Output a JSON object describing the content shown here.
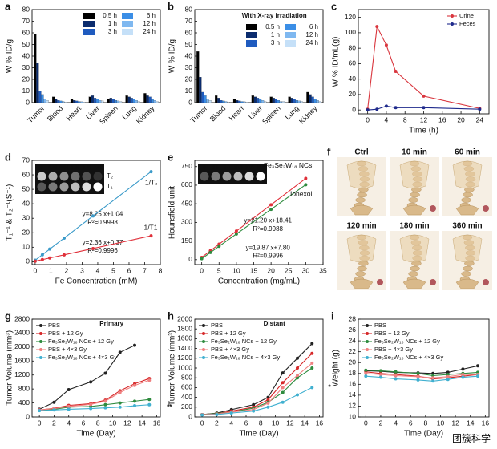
{
  "chart_data": [
    {
      "panel": "a",
      "type": "bar",
      "ylabel": "W % ID/g",
      "categories": [
        "Tumor",
        "Blood",
        "Heart",
        "Liver",
        "Spleen",
        "Lung",
        "Kidney"
      ],
      "series": [
        {
          "name": "0.5 h",
          "color": "#000000",
          "values": [
            59,
            5,
            3,
            5,
            3,
            6,
            8
          ]
        },
        {
          "name": "1 h",
          "color": "#0b2c6e",
          "values": [
            34,
            3,
            2,
            6,
            4,
            5,
            6
          ]
        },
        {
          "name": "3 h",
          "color": "#1f5bbf",
          "values": [
            10,
            2,
            1.5,
            4,
            3,
            4,
            5
          ]
        },
        {
          "name": "6 h",
          "color": "#3b8ee6",
          "values": [
            7,
            1.5,
            1,
            3,
            2,
            3,
            3
          ]
        },
        {
          "name": "12 h",
          "color": "#7fb8f0",
          "values": [
            3,
            1,
            0.8,
            2,
            1.5,
            2,
            2
          ]
        },
        {
          "name": "24 h",
          "color": "#c5e0f8",
          "values": [
            2,
            0.5,
            0.5,
            1.5,
            1,
            1,
            1
          ]
        }
      ],
      "ylim": [
        0,
        80
      ],
      "yticks": [
        0,
        10,
        20,
        30,
        40,
        50,
        60,
        70,
        80
      ],
      "legend": "upper right"
    },
    {
      "panel": "b",
      "type": "bar",
      "ylabel": "W % ID/g",
      "annotations": [
        {
          "text": "With X-ray irradiation",
          "color": "#000000"
        }
      ],
      "categories": [
        "Tumor",
        "Blood",
        "Heart",
        "Liver",
        "Spleen",
        "Lung",
        "Kidney"
      ],
      "series": [
        {
          "name": "0.5 h",
          "color": "#000000",
          "values": [
            44,
            6,
            3,
            6,
            5,
            5,
            9
          ]
        },
        {
          "name": "1 h",
          "color": "#0b2c6e",
          "values": [
            22,
            4,
            2,
            5,
            4,
            4,
            7
          ]
        },
        {
          "name": "3 h",
          "color": "#1f5bbf",
          "values": [
            9,
            2,
            1.5,
            4,
            3,
            3,
            5
          ]
        },
        {
          "name": "6 h",
          "color": "#3b8ee6",
          "values": [
            6,
            1.5,
            1,
            3,
            2,
            2,
            3
          ]
        },
        {
          "name": "12 h",
          "color": "#7fb8f0",
          "values": [
            3,
            1,
            0.8,
            2,
            1,
            1.5,
            2
          ]
        },
        {
          "name": "24 h",
          "color": "#c5e0f8",
          "values": [
            2,
            0.5,
            0.5,
            1,
            1,
            1,
            1
          ]
        }
      ],
      "ylim": [
        0,
        80
      ],
      "yticks": [
        0,
        10,
        20,
        30,
        40,
        50,
        60,
        70,
        80
      ],
      "legend": "upper right"
    },
    {
      "panel": "c",
      "type": "line",
      "xlabel": "Time (h)",
      "ylabel": "W % ID/mL(g)",
      "x": [
        0,
        2,
        4,
        6,
        12,
        24
      ],
      "series": [
        {
          "name": "Urine",
          "color": "#d9363e",
          "values": [
            1,
            108,
            84,
            50,
            18,
            2
          ]
        },
        {
          "name": "Feces",
          "color": "#1f2a8c",
          "values": [
            0,
            1,
            5,
            3,
            3,
            1
          ]
        }
      ],
      "xlim": [
        -2,
        26
      ],
      "xticks": [
        0,
        4,
        8,
        12,
        16,
        20,
        24
      ],
      "ylim": [
        -5,
        130
      ],
      "yticks": [
        0,
        20,
        40,
        60,
        80,
        100,
        120
      ],
      "legend": "upper right"
    },
    {
      "panel": "d",
      "type": "line",
      "xlabel": "Fe Concentration (mM)",
      "ylabel": "T₁⁻¹ & T₂⁻¹(S⁻¹)",
      "x": [
        0,
        0.46,
        0.93,
        1.85,
        3.7,
        7.41
      ],
      "series": [
        {
          "name": "1/T₂",
          "color": "#3a9ac9",
          "values": [
            1.04,
            4.8,
            8.7,
            16.3,
            31.6,
            62.2
          ]
        },
        {
          "name": "1/T1",
          "color": "#e0303a",
          "values": [
            0.37,
            1.46,
            2.56,
            4.74,
            9.1,
            17.9
          ]
        }
      ],
      "annotations": [
        {
          "text": "y=8.25 x+1.04",
          "color": "#3a9ac9"
        },
        {
          "text": "R²=0.9998",
          "color": "#3a9ac9"
        },
        {
          "text": "y=2.36 x+0.37",
          "color": "#e0303a"
        },
        {
          "text": "R²=0.9996",
          "color": "#e0303a"
        }
      ],
      "inset_labels": [
        "0",
        "0.46",
        "0.93",
        "1.85",
        "3.70",
        "7.41"
      ],
      "inset_rows": [
        {
          "text": "T₂",
          "color": "#3a9ac9"
        },
        {
          "text": "T₁",
          "color": "#e0303a"
        }
      ],
      "xlim": [
        -0.2,
        8
      ],
      "xticks": [
        0,
        1,
        2,
        3,
        4,
        5,
        6,
        7,
        8
      ],
      "ylim": [
        -2,
        70
      ],
      "yticks": [
        0,
        10,
        20,
        30,
        40,
        50,
        60,
        70
      ],
      "legend": "inline"
    },
    {
      "panel": "e",
      "type": "line",
      "xlabel": "Concentration (mg/mL)",
      "ylabel": "Hounsfield unit",
      "x": [
        0,
        2.5,
        5,
        10,
        20,
        30
      ],
      "series": [
        {
          "name": "Fe₃Se₂W₁₈ NCs",
          "color": "#e0303a",
          "values": [
            18.41,
            71.4,
            124.4,
            230.4,
            442.4,
            654.4
          ]
        },
        {
          "name": "Iohexol",
          "color": "#2e8b3e",
          "values": [
            7.8,
            57.5,
            107.2,
            206.5,
            405.2,
            603.9
          ]
        }
      ],
      "annotations": [
        {
          "text": "y=21.20 x+18.41",
          "color": "#e0303a"
        },
        {
          "text": "R²=0.9988",
          "color": "#e0303a"
        },
        {
          "text": "y=19.87 x+7.80",
          "color": "#2e8b3e"
        },
        {
          "text": "R²=0.9996",
          "color": "#2e8b3e"
        }
      ],
      "inset_labels": [
        "0",
        "2.5",
        "5.0",
        "10.0",
        "20.0",
        "30.0"
      ],
      "xlim": [
        -2,
        35
      ],
      "xticks": [
        0,
        5,
        10,
        15,
        20,
        25,
        30,
        35
      ],
      "ylim": [
        -40,
        800
      ],
      "yticks": [
        0,
        150,
        300,
        450,
        600,
        750
      ],
      "legend": "inline"
    },
    {
      "panel": "g",
      "type": "line",
      "xlabel": "Time (Day)",
      "ylabel": "Tumor Volume (mm³)",
      "annotations": [
        {
          "text": "Primary",
          "color": "#000000"
        },
        {
          "text": "**",
          "color": "#2e8b3e"
        }
      ],
      "x": [
        0,
        2,
        4,
        7,
        9,
        11,
        13,
        15
      ],
      "series": [
        {
          "name": "PBS",
          "color": "#222222",
          "values": [
            220,
            420,
            780,
            1000,
            1250,
            1850,
            2050,
            null
          ]
        },
        {
          "name": "PBS + 12 Gy",
          "color": "#d62728",
          "values": [
            200,
            250,
            330,
            380,
            480,
            750,
            950,
            1100
          ]
        },
        {
          "name": "Fe₃Se₂W₁₈ NCs + 12 Gy",
          "color": "#2e8b3e",
          "values": [
            190,
            220,
            280,
            300,
            350,
            400,
            450,
            500
          ]
        },
        {
          "name": "PBS + 4×3 Gy",
          "color": "#f08080",
          "values": [
            200,
            240,
            300,
            360,
            450,
            700,
            900,
            1050
          ]
        },
        {
          "name": "Fe₃Se₂W₁₈ NCs + 4×3 Gy",
          "color": "#40b0d0",
          "values": [
            180,
            200,
            220,
            240,
            260,
            280,
            320,
            350
          ]
        }
      ],
      "xlim": [
        -1,
        16.5
      ],
      "xticks": [
        0,
        2,
        4,
        6,
        8,
        10,
        12,
        14,
        16
      ],
      "ylim": [
        0,
        2800
      ],
      "yticks": [
        0,
        400,
        800,
        1200,
        1600,
        2000,
        2400,
        2800
      ],
      "legend": "upper left"
    },
    {
      "panel": "h",
      "type": "line",
      "xlabel": "Time (Day)",
      "ylabel": "Tumor Volume (mm³)",
      "annotations": [
        {
          "text": "Distant",
          "color": "#000000"
        },
        {
          "text": "*",
          "color": "#40b0d0"
        }
      ],
      "x": [
        0,
        2,
        4,
        7,
        9,
        11,
        13,
        15
      ],
      "series": [
        {
          "name": "PBS",
          "color": "#222222",
          "values": [
            50,
            80,
            150,
            250,
            400,
            900,
            1200,
            1500
          ]
        },
        {
          "name": "PBS + 12 Gy",
          "color": "#d62728",
          "values": [
            50,
            70,
            120,
            200,
            350,
            700,
            1000,
            1300
          ]
        },
        {
          "name": "Fe₃Se₂W₁₈ NCs + 12 Gy",
          "color": "#2e8b3e",
          "values": [
            50,
            70,
            100,
            180,
            300,
            500,
            800,
            1000
          ]
        },
        {
          "name": "PBS + 4×3 Gy",
          "color": "#f08080",
          "values": [
            50,
            60,
            100,
            150,
            280,
            600,
            850,
            1100
          ]
        },
        {
          "name": "Fe₃Se₂W₁₈ NCs + 4×3 Gy",
          "color": "#40b0d0",
          "values": [
            40,
            50,
            80,
            120,
            200,
            300,
            450,
            600
          ]
        }
      ],
      "xlim": [
        -1,
        16.5
      ],
      "xticks": [
        0,
        2,
        4,
        6,
        8,
        10,
        12,
        14,
        16
      ],
      "ylim": [
        0,
        2000
      ],
      "yticks": [
        0,
        200,
        400,
        600,
        800,
        1000,
        1200,
        1400,
        1600,
        1800,
        2000
      ],
      "legend": "upper left"
    },
    {
      "panel": "i",
      "type": "line",
      "xlabel": "Time (Day)",
      "ylabel": "Weight (g)",
      "x": [
        0,
        2,
        4,
        7,
        9,
        11,
        13,
        15
      ],
      "series": [
        {
          "name": "PBS",
          "color": "#222222",
          "values": [
            18.5,
            18.4,
            18.2,
            18.1,
            18.0,
            18.2,
            18.8,
            19.4
          ]
        },
        {
          "name": "PBS + 12 Gy",
          "color": "#d62728",
          "values": [
            18.3,
            18.0,
            17.8,
            17.5,
            17.0,
            17.2,
            17.5,
            17.8
          ]
        },
        {
          "name": "Fe₃Se₂W₁₈ NCs + 12 Gy",
          "color": "#2e8b3e",
          "values": [
            18.6,
            18.5,
            18.3,
            18.0,
            17.6,
            17.8,
            18.0,
            18.2
          ]
        },
        {
          "name": "PBS + 4×3 Gy",
          "color": "#f08080",
          "values": [
            18.0,
            17.8,
            17.6,
            17.4,
            17.2,
            17.4,
            17.8,
            17.8
          ]
        },
        {
          "name": "Fe₃Se₂W₁₈ NCs + 4×3 Gy",
          "color": "#40b0d0",
          "values": [
            17.5,
            17.3,
            17.0,
            16.8,
            16.6,
            16.9,
            17.3,
            17.5
          ]
        }
      ],
      "xlim": [
        -1,
        16.5
      ],
      "xticks": [
        0,
        2,
        4,
        6,
        8,
        10,
        12,
        14,
        16
      ],
      "ylim": [
        10,
        28
      ],
      "yticks": [
        10,
        12,
        14,
        16,
        18,
        20,
        22,
        24,
        26,
        28
      ],
      "legend": "upper left"
    }
  ],
  "images": {
    "panel": "f",
    "labels": [
      "Ctrl",
      "10 min",
      "60 min",
      "120 min",
      "180 min",
      "360 min"
    ]
  },
  "watermark": "团簇科学"
}
